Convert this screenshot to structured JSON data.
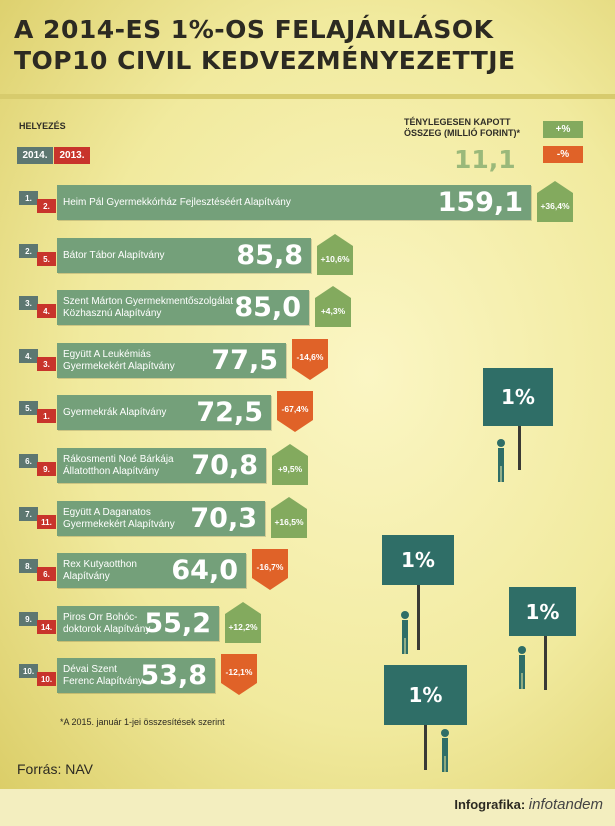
{
  "title_line1": "A 2014-ES 1%-OS FELAJÁNLÁSOK",
  "title_line2": "TOP10 CIVIL KEDVEZMÉNYEZETTJE",
  "rank_header": "HELYEZÉS",
  "year_2014": "2014.",
  "year_2013": "2013.",
  "amount_header_line1": "TÉNYLEGESEN KAPOTT",
  "amount_header_line2": "ÖSSZEG (MILLIÓ FORINT)*",
  "legend_example_value": "11,1",
  "legend_plus": "+%",
  "legend_minus": "-%",
  "colors": {
    "bar": "#74a07a",
    "positive": "#83aa5e",
    "negative": "#e06228",
    "rank2014": "#5d7771",
    "rank2013": "#c8342b",
    "sign": "#2f6e67"
  },
  "chart_data": {
    "type": "bar",
    "orientation": "horizontal",
    "categories": [
      "Heim Pál Gyermekkórház Fejlesztéséért Alapítvány",
      "Bátor Tábor Alapítvány",
      "Szent Márton Gyermekmentőszolgálat Közhasznú Alapítvány",
      "Együtt A Leukémiás Gyermekekért Alapítvány",
      "Gyermekrák Alapítvány",
      "Rákosmenti Noé Bárkája Állatotthon Alapítvány",
      "Együtt A Daganatos Gyermekekért Alapítvány",
      "Rex Kutyaotthon Alapítvány",
      "Piros Orr Bohócdoktorok Alapítvány",
      "Dévai Szent Ferenc Alapítvány"
    ],
    "values": [
      159.1,
      85.8,
      85.0,
      77.5,
      72.5,
      70.8,
      70.3,
      64.0,
      55.2,
      53.8
    ],
    "rank_2014": [
      1,
      2,
      3,
      4,
      5,
      6,
      7,
      8,
      9,
      10
    ],
    "rank_2013": [
      2,
      5,
      4,
      3,
      1,
      9,
      11,
      6,
      14,
      10
    ],
    "change_pct": [
      36.4,
      10.6,
      4.3,
      -14.6,
      -67.4,
      9.5,
      16.5,
      -16.7,
      12.2,
      -12.1
    ]
  },
  "rows": [
    {
      "rank2014": "1.",
      "rank2013": "2.",
      "name1": "Heim Pál Gyermekkórház Fejlesztéséért Alapítvány",
      "name2": "",
      "value": "159,1",
      "change": "+36,4%"
    },
    {
      "rank2014": "2.",
      "rank2013": "5.",
      "name1": "Bátor Tábor Alapítvány",
      "name2": "",
      "value": "85,8",
      "change": "+10,6%"
    },
    {
      "rank2014": "3.",
      "rank2013": "4.",
      "name1": "Szent Márton Gyermekmentőszolgálat",
      "name2": "Közhasznú Alapítvány",
      "value": "85,0",
      "change": "+4,3%"
    },
    {
      "rank2014": "4.",
      "rank2013": "3.",
      "name1": "Együtt A Leukémiás",
      "name2": "Gyermekekért Alapítvány",
      "value": "77,5",
      "change": "-14,6%"
    },
    {
      "rank2014": "5.",
      "rank2013": "1.",
      "name1": "Gyermekrák Alapítvány",
      "name2": "",
      "value": "72,5",
      "change": "-67,4%"
    },
    {
      "rank2014": "6.",
      "rank2013": "9.",
      "name1": "Rákosmenti Noé Bárkája",
      "name2": "Állatotthon Alapítvány",
      "value": "70,8",
      "change": "+9,5%"
    },
    {
      "rank2014": "7.",
      "rank2013": "11.",
      "name1": "Együtt A Daganatos",
      "name2": "Gyermekekért Alapítvány",
      "value": "70,3",
      "change": "+16,5%"
    },
    {
      "rank2014": "8.",
      "rank2013": "6.",
      "name1": "Rex Kutyaotthon",
      "name2": "Alapítvány",
      "value": "64,0",
      "change": "-16,7%"
    },
    {
      "rank2014": "9.",
      "rank2013": "14.",
      "name1": "Piros Orr Bohóc-",
      "name2": "doktorok Alapítvány",
      "value": "55,2",
      "change": "+12,2%"
    },
    {
      "rank2014": "10.",
      "rank2013": "10.",
      "name1": "Dévai Szent",
      "name2": "Ferenc Alapítvány",
      "value": "53,8",
      "change": "-12,1%"
    }
  ],
  "sign_text": "1%",
  "footnote": "*A 2015. január 1-jei összesítések szerint",
  "source": "Forrás: NAV",
  "credit_label": "Infografika:",
  "credit_brand": "infotandem"
}
